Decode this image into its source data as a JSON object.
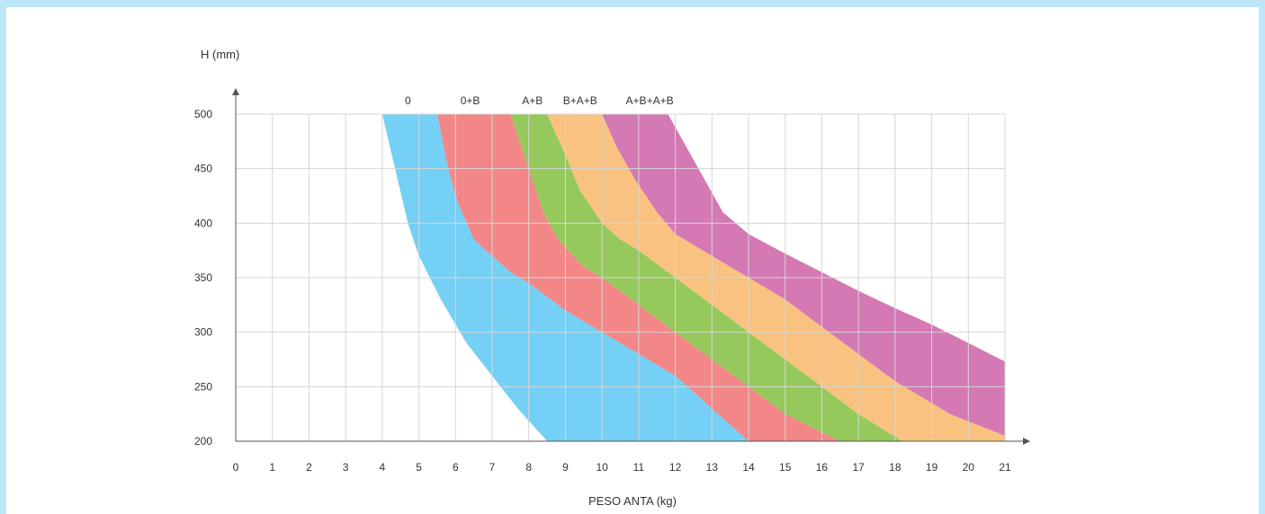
{
  "chart_data": {
    "type": "area",
    "title": "",
    "xlabel": "PESO ANTA (kg)",
    "ylabel": "H (mm)",
    "xlim": [
      0,
      21
    ],
    "ylim": [
      200,
      500
    ],
    "x_ticks": [
      "0",
      "1",
      "2",
      "3",
      "4",
      "5",
      "6",
      "7",
      "8",
      "9",
      "10",
      "11",
      "12",
      "13",
      "14",
      "15",
      "16",
      "17",
      "18",
      "19",
      "20",
      "21"
    ],
    "y_ticks": [
      "200",
      "250",
      "300",
      "350",
      "400",
      "450",
      "500"
    ],
    "grid": true,
    "colors": {
      "grid": "#d6d6d6",
      "axis": "#555555",
      "band_0": "#74d0f5",
      "band_0B": "#f38787",
      "band_AB": "#95c95b",
      "band_BAB": "#f9c280",
      "band_ABAB": "#d479b3"
    },
    "boundaries": [
      {
        "id": "L0",
        "points": [
          [
            4.0,
            500
          ],
          [
            4.35,
            450
          ],
          [
            4.7,
            400
          ],
          [
            5.0,
            370
          ],
          [
            5.6,
            330
          ],
          [
            6.3,
            290
          ],
          [
            7.0,
            260
          ],
          [
            7.7,
            230
          ],
          [
            8.5,
            200
          ]
        ]
      },
      {
        "id": "L1",
        "points": [
          [
            5.5,
            500
          ],
          [
            5.8,
            450
          ],
          [
            6.05,
            420
          ],
          [
            6.5,
            385
          ],
          [
            7.0,
            370
          ],
          [
            7.5,
            355
          ],
          [
            8.0,
            345
          ],
          [
            9.0,
            320
          ],
          [
            10.0,
            300
          ],
          [
            11.0,
            280
          ],
          [
            12.0,
            260
          ],
          [
            13.0,
            230
          ],
          [
            14.0,
            200
          ]
        ]
      },
      {
        "id": "L2",
        "points": [
          [
            7.5,
            500
          ],
          [
            7.8,
            470
          ],
          [
            8.1,
            440
          ],
          [
            8.4,
            410
          ],
          [
            8.8,
            385
          ],
          [
            9.5,
            360
          ],
          [
            10.0,
            350
          ],
          [
            11.0,
            325
          ],
          [
            12.0,
            300
          ],
          [
            13.0,
            275
          ],
          [
            14.0,
            250
          ],
          [
            15.0,
            225
          ],
          [
            16.5,
            200
          ]
        ]
      },
      {
        "id": "L3",
        "points": [
          [
            8.5,
            500
          ],
          [
            8.9,
            470
          ],
          [
            9.4,
            430
          ],
          [
            10.0,
            400
          ],
          [
            10.5,
            385
          ],
          [
            11.0,
            375
          ],
          [
            12.0,
            350
          ],
          [
            13.0,
            325
          ],
          [
            14.0,
            300
          ],
          [
            15.0,
            275
          ],
          [
            16.0,
            250
          ],
          [
            17.0,
            225
          ],
          [
            18.2,
            200
          ]
        ]
      },
      {
        "id": "L4",
        "points": [
          [
            10.0,
            500
          ],
          [
            10.4,
            470
          ],
          [
            10.9,
            440
          ],
          [
            11.5,
            410
          ],
          [
            12.0,
            390
          ],
          [
            13.0,
            370
          ],
          [
            14.0,
            350
          ],
          [
            15.0,
            330
          ],
          [
            16.0,
            305
          ],
          [
            17.0,
            280
          ],
          [
            18.0,
            255
          ],
          [
            19.5,
            225
          ],
          [
            21.0,
            205
          ]
        ]
      },
      {
        "id": "L5",
        "points": [
          [
            11.8,
            500
          ],
          [
            12.3,
            470
          ],
          [
            12.8,
            440
          ],
          [
            13.3,
            410
          ],
          [
            14.0,
            390
          ],
          [
            15.0,
            372
          ],
          [
            16.0,
            355
          ],
          [
            17.0,
            338
          ],
          [
            18.0,
            322
          ],
          [
            19.0,
            307
          ],
          [
            20.0,
            290
          ],
          [
            21.0,
            273
          ]
        ]
      }
    ],
    "series": [
      {
        "name": "0",
        "label_x": 4.7,
        "from": "L0",
        "to": "L1",
        "color_key": "band_0"
      },
      {
        "name": "0+B",
        "label_x": 6.4,
        "from": "L1",
        "to": "L2",
        "color_key": "band_0B"
      },
      {
        "name": "A+B",
        "label_x": 8.1,
        "from": "L2",
        "to": "L3",
        "color_key": "band_AB"
      },
      {
        "name": "B+A+B",
        "label_x": 9.4,
        "from": "L3",
        "to": "L4",
        "color_key": "band_BAB"
      },
      {
        "name": "A+B+A+B",
        "label_x": 11.3,
        "from": "L4",
        "to": "L5",
        "color_key": "band_ABAB"
      }
    ]
  }
}
